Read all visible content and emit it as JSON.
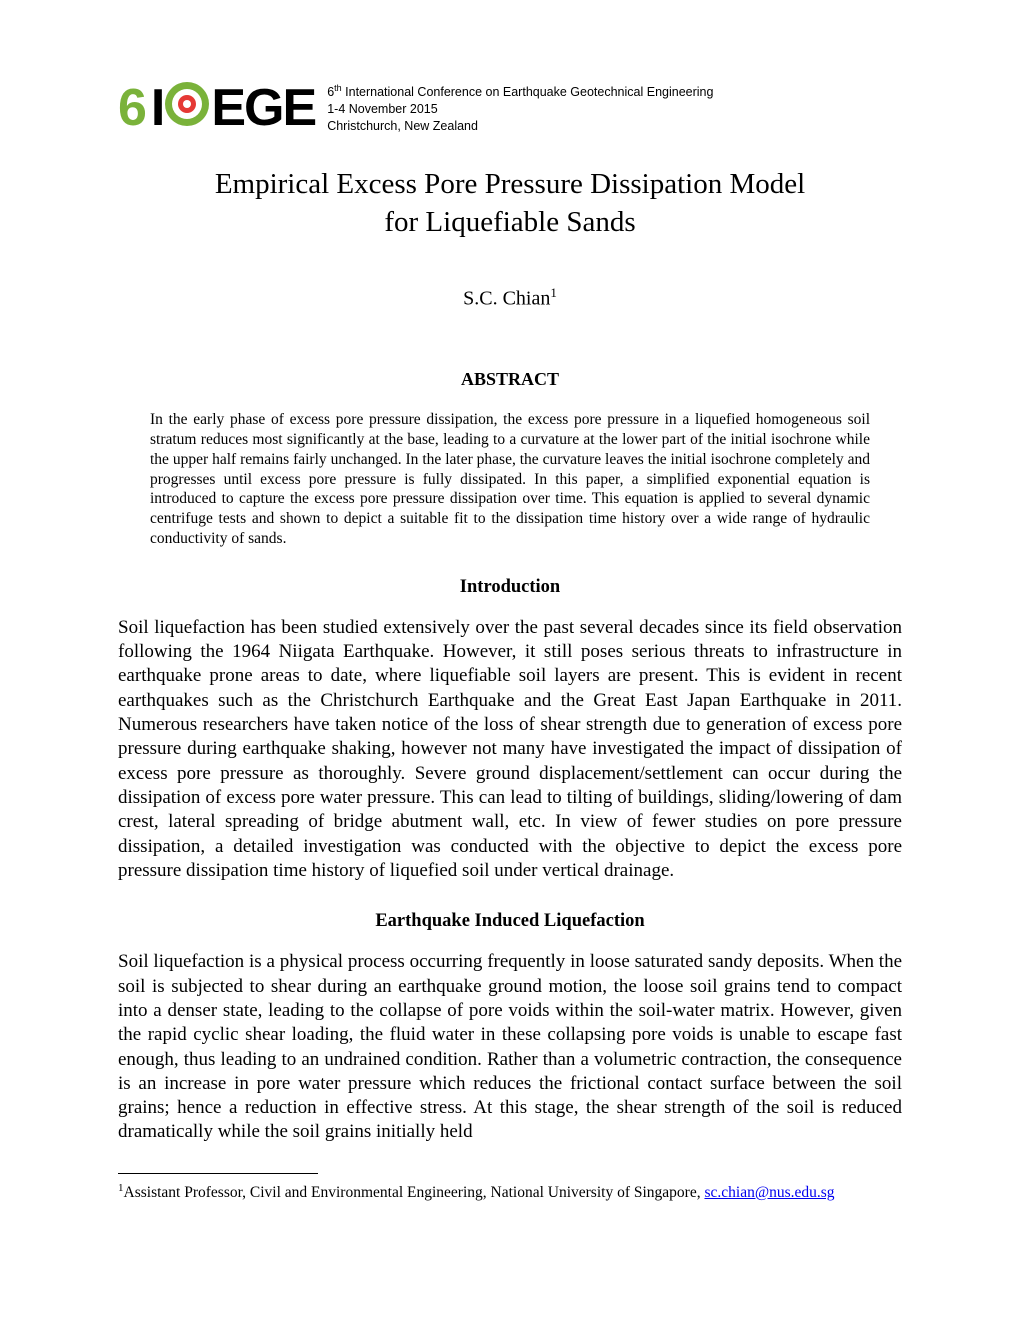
{
  "header": {
    "logo": {
      "six": "6",
      "i": "I",
      "ege": "EGE"
    },
    "conference": {
      "ordinal_sup": "th",
      "ordinal_num": "6",
      "name": " International Conference on Earthquake Geotechnical Engineering",
      "dates": "1-4 November 2015",
      "location": "Christchurch, New Zealand"
    }
  },
  "title": {
    "line1": "Empirical Excess Pore Pressure Dissipation Model",
    "line2": "for Liquefiable Sands"
  },
  "author": {
    "name": "S.C. Chian",
    "sup": "1"
  },
  "abstract": {
    "heading": "ABSTRACT",
    "body": "In the early phase of excess pore pressure dissipation, the excess pore pressure in a liquefied homogeneous soil stratum reduces most significantly at the base, leading to a curvature at the lower part of the initial isochrone while the upper half remains fairly unchanged. In the later phase, the curvature leaves the initial isochrone completely and progresses until excess pore pressure is fully dissipated. In this paper, a simplified exponential equation is introduced to capture the excess pore pressure dissipation over time. This equation is applied to several dynamic centrifuge tests and shown to depict a suitable fit to the dissipation time history over a wide range of hydraulic conductivity of sands."
  },
  "sections": {
    "intro": {
      "heading": "Introduction",
      "body": "Soil liquefaction has been studied extensively over the past several decades since its field observation following the 1964 Niigata Earthquake. However, it still poses serious threats to infrastructure in earthquake prone areas to date, where liquefiable soil layers are present. This is evident in recent earthquakes such as the Christchurch Earthquake and the Great East Japan Earthquake in 2011. Numerous researchers have taken notice of the loss of shear strength due to generation of excess pore pressure during earthquake shaking, however not many have investigated the impact of dissipation of excess pore pressure as thoroughly. Severe ground displacement/settlement can occur during the dissipation of excess pore water pressure. This can lead to tilting of buildings, sliding/lowering of dam crest, lateral spreading of bridge abutment wall, etc. In view of fewer studies on pore pressure dissipation, a detailed investigation was conducted with the objective to depict the excess pore pressure dissipation time history of liquefied soil under vertical drainage."
    },
    "liquefaction": {
      "heading": "Earthquake Induced Liquefaction",
      "body": "Soil liquefaction is a physical process occurring frequently in loose saturated sandy deposits. When the soil is subjected to shear during an earthquake ground motion, the loose soil grains tend to compact into a denser state, leading to the collapse of pore voids within the soil-water matrix. However, given the rapid cyclic shear loading, the fluid water in these collapsing pore voids is unable to escape fast enough, thus leading to an undrained condition. Rather than a volumetric contraction, the consequence is an increase in pore water pressure which reduces the frictional contact surface between the soil grains; hence a reduction in effective stress. At this stage, the shear strength of the soil is reduced dramatically while the soil grains initially held"
    }
  },
  "footnote": {
    "sup": "1",
    "text": "Assistant Professor, Civil and Environmental Engineering, National University of Singapore, ",
    "email": "sc.chian@nus.edu.sg"
  }
}
